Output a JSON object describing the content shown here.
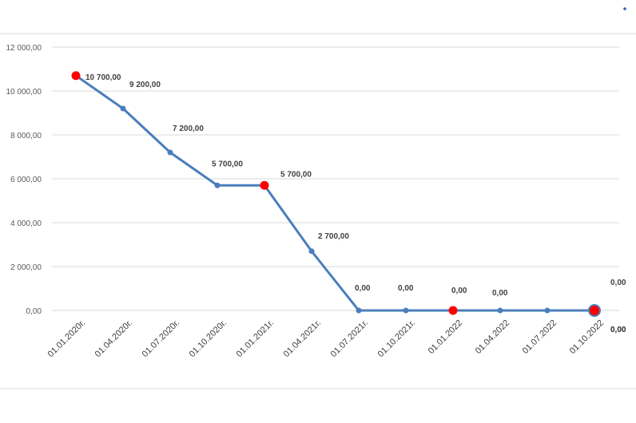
{
  "chart_data": {
    "type": "line",
    "categories": [
      "01.01.2020г.",
      "01.04.2020г.",
      "01.07.2020г.",
      "01.10.2020г.",
      "01.01.2021г.",
      "01.04.2021г.",
      "01.07.2021г.",
      "01.10.2021г.",
      "01.01.2022",
      "01.04.2022",
      "01.07.2022",
      "01.10.2022"
    ],
    "series": [
      {
        "values": [
          10700,
          9200,
          7200,
          5700,
          5700,
          2700,
          0,
          0,
          0,
          0,
          0,
          0
        ],
        "color": "#4a7ebb"
      }
    ],
    "highlighted_points": [
      0,
      4,
      8,
      11
    ],
    "highlight_color": "#ff0000",
    "data_labels": [
      "10 700,00",
      "9 200,00",
      "7 200,00",
      "5 700,00",
      "5 700,00",
      "2 700,00",
      "0,00",
      "0,00",
      "0,00",
      "0,00",
      "",
      "0,00"
    ],
    "extra_labels": [
      "0,00",
      "0,00"
    ],
    "y_ticks": [
      "0,00",
      "2 000,00",
      "4 000,00",
      "6 000,00",
      "8 000,00",
      "10 000,00",
      "12 000,00"
    ],
    "ylim": [
      0,
      12000
    ],
    "grid": true,
    "title": "",
    "xlabel": "",
    "ylabel": ""
  }
}
